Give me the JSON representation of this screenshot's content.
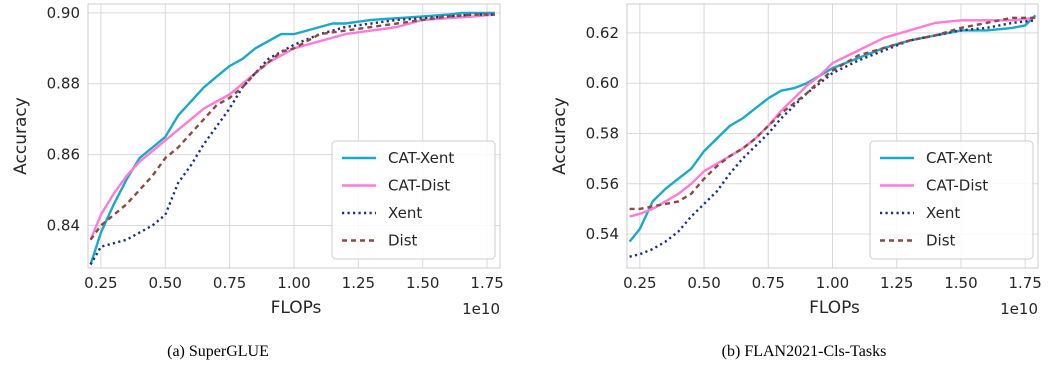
{
  "chart_data": [
    {
      "type": "line",
      "caption": "(a) SuperGLUE",
      "xlabel": "FLOPs",
      "ylabel": "Accuracy",
      "x_offset_label": "1e10",
      "xlim": [
        0.2,
        1.8
      ],
      "ylim": [
        0.828,
        0.9025
      ],
      "xticks": [
        "0.25",
        "0.50",
        "0.75",
        "1.00",
        "1.25",
        "1.50",
        "1.75"
      ],
      "yticks": [
        "0.84",
        "0.86",
        "0.88",
        "0.90"
      ],
      "grid": true,
      "legend_position": "lower-right",
      "series": [
        {
          "name": "CAT-Xent",
          "color": "#1aa9c9",
          "style": "solid",
          "x": [
            0.21,
            0.25,
            0.3,
            0.35,
            0.4,
            0.45,
            0.5,
            0.55,
            0.6,
            0.65,
            0.7,
            0.75,
            0.8,
            0.85,
            0.9,
            0.95,
            1.0,
            1.05,
            1.1,
            1.15,
            1.2,
            1.25,
            1.3,
            1.4,
            1.5,
            1.6,
            1.65,
            1.7,
            1.78
          ],
          "y": [
            0.829,
            0.838,
            0.846,
            0.853,
            0.859,
            0.862,
            0.865,
            0.871,
            0.875,
            0.879,
            0.882,
            0.885,
            0.887,
            0.89,
            0.892,
            0.894,
            0.894,
            0.895,
            0.896,
            0.897,
            0.897,
            0.8975,
            0.898,
            0.8985,
            0.899,
            0.8995,
            0.9,
            0.9,
            0.9
          ]
        },
        {
          "name": "CAT-Dist",
          "color": "#ff7ad9",
          "style": "solid",
          "x": [
            0.21,
            0.25,
            0.3,
            0.35,
            0.4,
            0.45,
            0.5,
            0.55,
            0.6,
            0.65,
            0.7,
            0.75,
            0.8,
            0.85,
            0.9,
            0.95,
            1.0,
            1.05,
            1.1,
            1.2,
            1.3,
            1.4,
            1.5,
            1.6,
            1.7,
            1.78
          ],
          "y": [
            0.836,
            0.843,
            0.849,
            0.854,
            0.858,
            0.861,
            0.864,
            0.867,
            0.87,
            0.873,
            0.875,
            0.877,
            0.88,
            0.883,
            0.886,
            0.888,
            0.89,
            0.891,
            0.892,
            0.894,
            0.895,
            0.896,
            0.898,
            0.8985,
            0.899,
            0.8995
          ]
        },
        {
          "name": "Xent",
          "color": "#1a2f80",
          "style": "dotted",
          "x": [
            0.21,
            0.25,
            0.3,
            0.35,
            0.4,
            0.45,
            0.5,
            0.55,
            0.6,
            0.65,
            0.7,
            0.75,
            0.8,
            0.85,
            0.9,
            0.95,
            1.0,
            1.05,
            1.1,
            1.15,
            1.2,
            1.3,
            1.4,
            1.5,
            1.6,
            1.7,
            1.78
          ],
          "y": [
            0.829,
            0.834,
            0.835,
            0.836,
            0.838,
            0.84,
            0.843,
            0.852,
            0.857,
            0.863,
            0.868,
            0.873,
            0.879,
            0.883,
            0.887,
            0.889,
            0.891,
            0.8925,
            0.894,
            0.895,
            0.896,
            0.897,
            0.898,
            0.8985,
            0.899,
            0.8995,
            0.8995
          ]
        },
        {
          "name": "Dist",
          "color": "#8b4a42",
          "style": "dashed",
          "x": [
            0.21,
            0.25,
            0.3,
            0.35,
            0.4,
            0.45,
            0.5,
            0.55,
            0.6,
            0.65,
            0.7,
            0.75,
            0.8,
            0.85,
            0.9,
            0.95,
            1.0,
            1.1,
            1.2,
            1.3,
            1.4,
            1.5,
            1.6,
            1.7,
            1.78
          ],
          "y": [
            0.836,
            0.84,
            0.843,
            0.846,
            0.85,
            0.854,
            0.859,
            0.862,
            0.866,
            0.87,
            0.874,
            0.876,
            0.879,
            0.883,
            0.886,
            0.889,
            0.89,
            0.894,
            0.895,
            0.896,
            0.897,
            0.898,
            0.899,
            0.8995,
            0.8995
          ]
        }
      ]
    },
    {
      "type": "line",
      "caption": "(b) FLAN2021-Cls-Tasks",
      "xlabel": "FLOPs",
      "ylabel": "Accuracy",
      "x_offset_label": "1e10",
      "xlim": [
        0.2,
        1.8
      ],
      "ylim": [
        0.5265,
        0.6315
      ],
      "xticks": [
        "0.25",
        "0.50",
        "0.75",
        "1.00",
        "1.25",
        "1.50",
        "1.75"
      ],
      "yticks": [
        "0.54",
        "0.56",
        "0.58",
        "0.60",
        "0.62"
      ],
      "grid": true,
      "legend_position": "lower-right",
      "series": [
        {
          "name": "CAT-Xent",
          "color": "#1aa9c9",
          "style": "solid",
          "x": [
            0.21,
            0.25,
            0.3,
            0.35,
            0.4,
            0.45,
            0.5,
            0.55,
            0.6,
            0.65,
            0.7,
            0.75,
            0.8,
            0.85,
            0.9,
            0.95,
            1.0,
            1.1,
            1.2,
            1.3,
            1.4,
            1.5,
            1.6,
            1.7,
            1.75,
            1.79
          ],
          "y": [
            0.537,
            0.542,
            0.553,
            0.558,
            0.562,
            0.566,
            0.573,
            0.578,
            0.583,
            0.586,
            0.59,
            0.594,
            0.597,
            0.598,
            0.6,
            0.603,
            0.606,
            0.61,
            0.614,
            0.617,
            0.619,
            0.621,
            0.621,
            0.622,
            0.623,
            0.627
          ]
        },
        {
          "name": "CAT-Dist",
          "color": "#ff7ad9",
          "style": "solid",
          "x": [
            0.21,
            0.25,
            0.3,
            0.35,
            0.4,
            0.45,
            0.5,
            0.55,
            0.6,
            0.65,
            0.7,
            0.75,
            0.8,
            0.85,
            0.9,
            0.95,
            1.0,
            1.1,
            1.2,
            1.3,
            1.4,
            1.5,
            1.6,
            1.7,
            1.79
          ],
          "y": [
            0.547,
            0.548,
            0.55,
            0.553,
            0.556,
            0.56,
            0.565,
            0.568,
            0.571,
            0.574,
            0.578,
            0.583,
            0.589,
            0.594,
            0.599,
            0.603,
            0.608,
            0.613,
            0.618,
            0.621,
            0.624,
            0.625,
            0.625,
            0.625,
            0.626
          ]
        },
        {
          "name": "Xent",
          "color": "#1a2f80",
          "style": "dotted",
          "x": [
            0.21,
            0.25,
            0.3,
            0.35,
            0.4,
            0.45,
            0.5,
            0.55,
            0.6,
            0.65,
            0.7,
            0.75,
            0.8,
            0.85,
            0.9,
            0.95,
            1.0,
            1.1,
            1.2,
            1.3,
            1.4,
            1.5,
            1.6,
            1.7,
            1.79
          ],
          "y": [
            0.531,
            0.532,
            0.534,
            0.537,
            0.541,
            0.547,
            0.552,
            0.557,
            0.564,
            0.57,
            0.575,
            0.58,
            0.586,
            0.591,
            0.596,
            0.6,
            0.604,
            0.609,
            0.613,
            0.617,
            0.619,
            0.621,
            0.622,
            0.624,
            0.625
          ]
        },
        {
          "name": "Dist",
          "color": "#8b4a42",
          "style": "dashed",
          "x": [
            0.21,
            0.25,
            0.3,
            0.35,
            0.4,
            0.45,
            0.5,
            0.55,
            0.6,
            0.65,
            0.7,
            0.75,
            0.8,
            0.85,
            0.9,
            0.95,
            1.0,
            1.1,
            1.2,
            1.3,
            1.4,
            1.5,
            1.6,
            1.7,
            1.79
          ],
          "y": [
            0.55,
            0.55,
            0.551,
            0.552,
            0.553,
            0.556,
            0.562,
            0.567,
            0.571,
            0.574,
            0.578,
            0.583,
            0.588,
            0.592,
            0.596,
            0.601,
            0.605,
            0.611,
            0.614,
            0.617,
            0.619,
            0.622,
            0.624,
            0.626,
            0.626
          ]
        }
      ]
    }
  ]
}
